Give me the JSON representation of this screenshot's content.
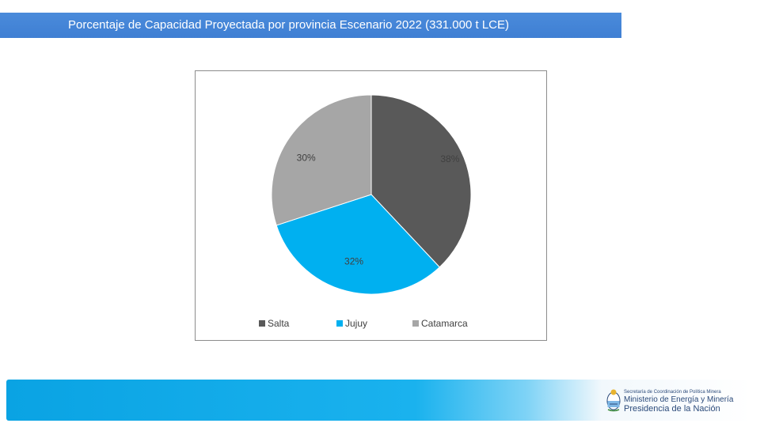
{
  "header": {
    "title": "Porcentaje de Capacidad Proyectada por provincia Escenario 2022 (331.000 t LCE)"
  },
  "chart_data": {
    "type": "pie",
    "title": "",
    "categories": [
      "Salta",
      "Jujuy",
      "Catamarca"
    ],
    "values": [
      38,
      32,
      30
    ],
    "labels": [
      "38%",
      "32%",
      "30%"
    ],
    "colors": [
      "#595959",
      "#00b0f0",
      "#a6a6a6"
    ],
    "legend_position": "bottom"
  },
  "footer": {
    "line1": "Secretaría de Coordinación de Política Minera",
    "line2": "Ministerio de Energía y Minería",
    "line3": "Presidencia de la Nación"
  }
}
